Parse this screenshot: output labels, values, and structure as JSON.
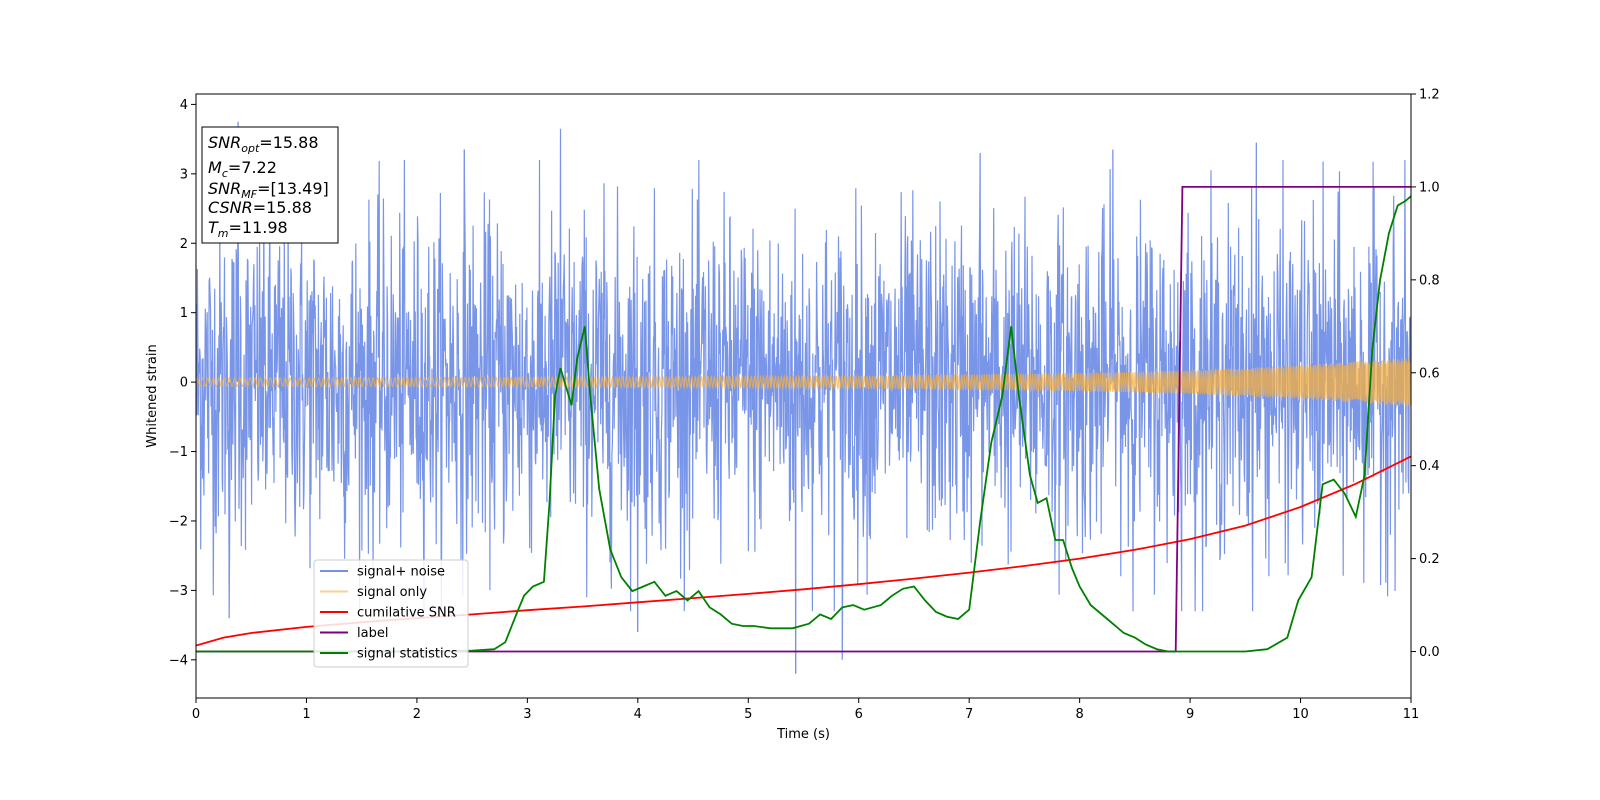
{
  "chart_data": {
    "type": "line",
    "title": "",
    "xlabel": "Time (s)",
    "ylabel": "Whitened strain",
    "xlim": [
      0,
      11
    ],
    "ylim_left": [
      -4.55,
      4.15
    ],
    "ylim_right": [
      -0.1,
      1.2
    ],
    "grid": false,
    "legend_position": "lower-left",
    "x_ticks": [
      "0",
      "1",
      "2",
      "3",
      "4",
      "5",
      "6",
      "7",
      "8",
      "9",
      "10",
      "11"
    ],
    "y_ticks_left": [
      "−4",
      "−3",
      "−2",
      "−1",
      "0",
      "1",
      "2",
      "3",
      "4"
    ],
    "y_ticks_right": [
      "0.0",
      "0.2",
      "0.4",
      "0.6",
      "0.8",
      "1.0",
      "1.2"
    ],
    "info_box": [
      {
        "base": "SNR",
        "sub": "opt",
        "value": "=15.88"
      },
      {
        "base": "M",
        "sub": "c",
        "value": "=7.22"
      },
      {
        "base": "SNR",
        "sub": "MF",
        "value": "=[13.49]"
      },
      {
        "base": "CSNR",
        "sub": "",
        "value": "=15.88"
      },
      {
        "base": "T",
        "sub": "m",
        "value": "=11.98"
      }
    ],
    "series": [
      {
        "name": "signal+ noise",
        "color": "#6a8ae6",
        "axis": "left",
        "kind": "noise",
        "typical_range": [
          -2.6,
          2.6
        ],
        "spikes": [
          [
            0.38,
            3.75
          ],
          [
            0.3,
            -3.4
          ],
          [
            2.43,
            3.35
          ],
          [
            3.3,
            3.65
          ],
          [
            7.1,
            3.3
          ],
          [
            8.3,
            3.35
          ],
          [
            9.6,
            3.45
          ],
          [
            5.43,
            -4.2
          ],
          [
            5.85,
            -4.0
          ],
          [
            4.0,
            -3.6
          ]
        ]
      },
      {
        "name": "signal only",
        "color": "#f5b041",
        "axis": "left",
        "kind": "chirp",
        "amplitude": [
          [
            0,
            0.06
          ],
          [
            3,
            0.07
          ],
          [
            6,
            0.09
          ],
          [
            8,
            0.13
          ],
          [
            9,
            0.17
          ],
          [
            10,
            0.24
          ],
          [
            11,
            0.35
          ]
        ]
      },
      {
        "name": "cumilative SNR",
        "color": "#ff0000",
        "axis": "right",
        "kind": "line",
        "x": [
          0,
          0.25,
          0.5,
          1,
          1.5,
          2,
          2.5,
          3,
          3.5,
          4,
          4.5,
          5,
          5.5,
          6,
          6.5,
          7,
          7.5,
          8,
          8.5,
          9,
          9.5,
          10,
          10.5,
          11
        ],
        "y": [
          0.013,
          0.03,
          0.04,
          0.053,
          0.063,
          0.072,
          0.08,
          0.089,
          0.097,
          0.106,
          0.115,
          0.124,
          0.134,
          0.145,
          0.157,
          0.17,
          0.184,
          0.2,
          0.219,
          0.242,
          0.271,
          0.311,
          0.361,
          0.42
        ]
      },
      {
        "name": "label",
        "color": "#800080",
        "axis": "right",
        "kind": "line",
        "x": [
          0,
          8.87,
          8.93,
          11
        ],
        "y": [
          0,
          0,
          1.0,
          1.0
        ]
      },
      {
        "name": "signal statistics",
        "color": "#008000",
        "axis": "right",
        "kind": "line",
        "x": [
          0,
          1,
          2,
          2.5,
          2.7,
          2.8,
          2.9,
          2.97,
          3.05,
          3.15,
          3.2,
          3.25,
          3.3,
          3.4,
          3.45,
          3.52,
          3.57,
          3.65,
          3.75,
          3.85,
          3.95,
          4.05,
          4.15,
          4.25,
          4.35,
          4.45,
          4.55,
          4.65,
          4.75,
          4.85,
          4.95,
          5.05,
          5.2,
          5.4,
          5.55,
          5.65,
          5.75,
          5.85,
          5.95,
          6.05,
          6.2,
          6.3,
          6.4,
          6.5,
          6.6,
          6.7,
          6.8,
          6.9,
          7.0,
          7.1,
          7.2,
          7.3,
          7.38,
          7.45,
          7.55,
          7.62,
          7.7,
          7.78,
          7.85,
          7.93,
          8.0,
          8.1,
          8.25,
          8.4,
          8.5,
          8.6,
          8.7,
          8.8,
          8.9,
          9.2,
          9.5,
          9.7,
          9.88,
          9.98,
          10.1,
          10.2,
          10.3,
          10.4,
          10.5,
          10.58,
          10.65,
          10.72,
          10.8,
          10.88,
          10.95,
          11.0
        ],
        "y": [
          0.0,
          0.0,
          0.0,
          0.002,
          0.005,
          0.02,
          0.08,
          0.12,
          0.14,
          0.15,
          0.32,
          0.55,
          0.61,
          0.53,
          0.63,
          0.7,
          0.55,
          0.35,
          0.22,
          0.16,
          0.13,
          0.14,
          0.15,
          0.12,
          0.13,
          0.11,
          0.13,
          0.095,
          0.08,
          0.06,
          0.055,
          0.055,
          0.05,
          0.05,
          0.06,
          0.08,
          0.07,
          0.095,
          0.1,
          0.09,
          0.1,
          0.12,
          0.135,
          0.14,
          0.11,
          0.085,
          0.075,
          0.07,
          0.09,
          0.28,
          0.45,
          0.55,
          0.7,
          0.55,
          0.38,
          0.32,
          0.33,
          0.24,
          0.24,
          0.18,
          0.14,
          0.1,
          0.07,
          0.04,
          0.03,
          0.015,
          0.005,
          0.0,
          0.0,
          0.0,
          0.0,
          0.005,
          0.03,
          0.11,
          0.16,
          0.36,
          0.37,
          0.34,
          0.29,
          0.38,
          0.65,
          0.8,
          0.9,
          0.96,
          0.97,
          0.98
        ]
      }
    ]
  }
}
